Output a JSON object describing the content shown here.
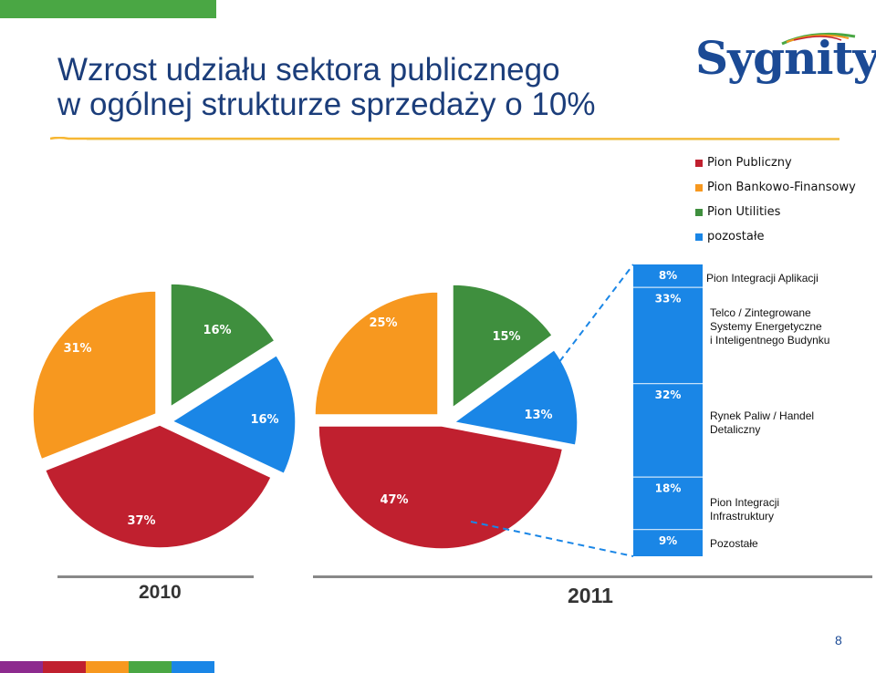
{
  "title": {
    "line1": "Wzrost udziału sektora publicznego",
    "line2": "w ogólnej strukturze sprzedaży o 10%"
  },
  "logo": {
    "text": "Sygnity"
  },
  "page_number": "8",
  "colors": {
    "publiczny": "#c0202f",
    "bankowo": "#f7981f",
    "utilities": "#3f8f3e",
    "pozostale": "#1a86e6",
    "title": "#1b3d7a"
  },
  "decor": {
    "top_bar": "#4aa744",
    "bottom_bar": [
      "#8d2a8e",
      "#c0202f",
      "#f7981f",
      "#4aa744",
      "#1a86e6"
    ]
  },
  "chart_data": [
    {
      "type": "pie",
      "title": "2010",
      "categories": [
        "Pion Publiczny",
        "Pion Bankowo-Finansowy",
        "Pion Utilities",
        "pozostałe"
      ],
      "values": [
        37,
        31,
        16,
        16
      ],
      "labels": [
        "37%",
        "31%",
        "16%",
        "16%"
      ],
      "legend": "top-right"
    },
    {
      "type": "pie",
      "title": "2011",
      "categories": [
        "Pion Publiczny",
        "Pion Bankowo-Finansowy",
        "Pion Utilities",
        "pozostałe"
      ],
      "values": [
        47,
        25,
        15,
        13
      ],
      "labels": [
        "47%",
        "25%",
        "15%",
        "13%"
      ],
      "legend": "top-right"
    },
    {
      "type": "bar",
      "stacked": true,
      "categories": [
        "Pion Integracji Aplikacji",
        "Telco / Zintegrowane Systemy Energetyczne i Inteligentnego Budynku",
        "Rynek Paliw / Handel Detaliczny",
        "Pion Integracji Infrastruktury",
        "Pozostałe"
      ],
      "values": [
        8,
        33,
        32,
        18,
        9
      ],
      "labels": [
        "8%",
        "33%",
        "32%",
        "18%",
        "9%"
      ]
    }
  ],
  "legend": [
    {
      "label": "Pion Publiczny",
      "color": "#c0202f"
    },
    {
      "label": "Pion Bankowo-Finansowy",
      "color": "#f7981f"
    },
    {
      "label": "Pion Utilities",
      "color": "#3f8f3e"
    },
    {
      "label": "pozostałe",
      "color": "#1a86e6"
    }
  ],
  "bar_labels": [
    {
      "lines": [
        "Pion Integracji Aplikacji"
      ]
    },
    {
      "lines": [
        "Telco / Zintegrowane",
        "Systemy Energetyczne",
        "i Inteligentnego Budynku"
      ]
    },
    {
      "lines": [
        "Rynek Paliw / Handel",
        "Detaliczny"
      ]
    },
    {
      "lines": [
        "Pion Integracji",
        "Infrastruktury"
      ]
    },
    {
      "lines": [
        "Pozostałe"
      ]
    }
  ],
  "years": [
    "2010",
    "2011"
  ]
}
